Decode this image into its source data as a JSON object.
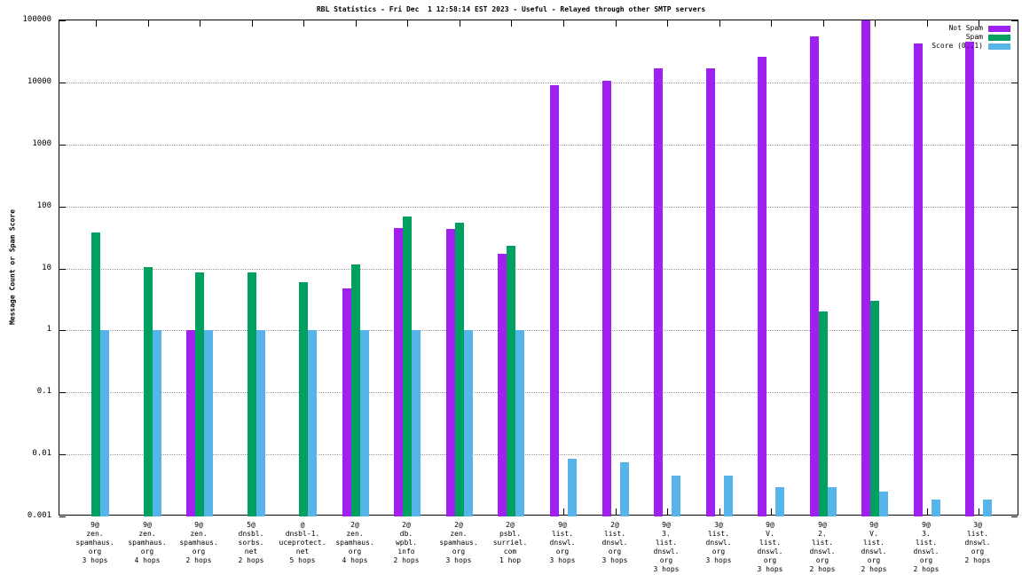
{
  "title": "RBL Statistics - Fri Dec  1 12:58:14 EST 2023 - Useful - Relayed through other SMTP servers",
  "y_axis": {
    "label": "Message Count or Spam Score",
    "ticks": [
      "100000",
      "10000",
      "1000",
      "100",
      "10",
      "1",
      "0.1",
      "0.01",
      "0.001"
    ]
  },
  "legend": [
    {
      "label": "Not Spam",
      "color": "#a020f0"
    },
    {
      "label": "Spam",
      "color": "#00a060"
    },
    {
      "label": "Score (0..1)",
      "color": "#56b4e9"
    }
  ],
  "chart_data": {
    "type": "bar",
    "scale": "log",
    "ylim": [
      0.001,
      100000
    ],
    "grid": true,
    "legend_position": "top-right",
    "title": "RBL Statistics - Fri Dec  1 12:58:14 EST 2023 - Useful - Relayed through other SMTP servers",
    "ylabel": "Message Count or Spam Score",
    "categories": [
      "9@zen.spamhaus.org 3 hops",
      "9@zen.spamhaus.org 4 hops",
      "9@zen.spamhaus.org 2 hops",
      "5@dnsbl.sorbs.net 2 hops",
      "@dnsbl-1.uceprotect.net 5 hops",
      "2@zen.spamhaus.org 4 hops",
      "2@db.wpbl.info 2 hops",
      "2@zen.spamhaus.org 3 hops",
      "2@psbl.surriel.com 1 hop",
      "9@list.dnswl.org 3 hops",
      "2@list.dnswl.org 3 hops",
      "9@3.list.dnswl.org 3 hops",
      "3@list.dnswl.org 3 hops",
      "9@V.list.dnswl.org 3 hops",
      "9@2.list.dnswl.org 2 hops",
      "9@V.list.dnswl.org 2 hops",
      "9@3.list.dnswl.org 2 hops",
      "3@list.dnswl.org 2 hops"
    ],
    "category_lines": [
      [
        "9@",
        "zen.",
        "spamhaus.",
        "org",
        "3 hops"
      ],
      [
        "9@",
        "zen.",
        "spamhaus.",
        "org",
        "4 hops"
      ],
      [
        "9@",
        "zen.",
        "spamhaus.",
        "org",
        "2 hops"
      ],
      [
        "5@",
        "dnsbl.",
        "sorbs.",
        "net",
        "2 hops"
      ],
      [
        "@",
        "dnsbl-1.",
        "uceprotect.",
        "net",
        "5 hops"
      ],
      [
        "2@",
        "zen.",
        "spamhaus.",
        "org",
        "4 hops"
      ],
      [
        "2@",
        "db.",
        "wpbl.",
        "info",
        "2 hops"
      ],
      [
        "2@",
        "zen.",
        "spamhaus.",
        "org",
        "3 hops"
      ],
      [
        "2@",
        "psbl.",
        "surriel.",
        "com",
        "1 hop"
      ],
      [
        "9@",
        "list.",
        "dnswl.",
        "org",
        "3 hops"
      ],
      [
        "2@",
        "list.",
        "dnswl.",
        "org",
        "3 hops"
      ],
      [
        "9@",
        "3.",
        "list.",
        "dnswl.",
        "org",
        "3 hops"
      ],
      [
        "3@",
        "list.",
        "dnswl.",
        "org",
        "3 hops"
      ],
      [
        "9@",
        "V.",
        "list.",
        "dnswl.",
        "org",
        "3 hops"
      ],
      [
        "9@",
        "2.",
        "list.",
        "dnswl.",
        "org",
        "2 hops"
      ],
      [
        "9@",
        "V.",
        "list.",
        "dnswl.",
        "org",
        "2 hops"
      ],
      [
        "9@",
        "3.",
        "list.",
        "dnswl.",
        "org",
        "2 hops"
      ],
      [
        "3@",
        "list.",
        "dnswl.",
        "org",
        "2 hops"
      ]
    ],
    "series": [
      {
        "name": "Not Spam",
        "color": "#a020f0",
        "values": [
          null,
          null,
          1,
          null,
          null,
          4.8,
          45,
          43,
          17,
          9000,
          10500,
          17000,
          17000,
          26000,
          55000,
          100000,
          42000,
          45000
        ]
      },
      {
        "name": "Spam",
        "color": "#00a060",
        "values": [
          38,
          10.5,
          8.5,
          8.5,
          6,
          11.5,
          68,
          55,
          23,
          null,
          null,
          null,
          null,
          null,
          2,
          3,
          null,
          null
        ]
      },
      {
        "name": "Score (0..1)",
        "color": "#56b4e9",
        "values": [
          1,
          1,
          1,
          1,
          1,
          1,
          1,
          1,
          1,
          0.0085,
          0.0075,
          0.0045,
          0.0045,
          0.003,
          0.003,
          0.0025,
          0.0019,
          0.0019
        ]
      }
    ]
  }
}
